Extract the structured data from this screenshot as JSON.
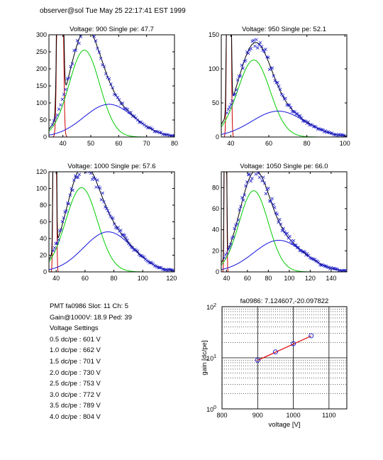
{
  "header": "observer@sol  Tue May 25 22:17:41 EST 1999",
  "info": {
    "pmt_line": "PMT fa0986 Slot: 11 Ch: 5",
    "gain_line": "Gain@1000V: 18.9 Ped: 39",
    "settings_title": "Voltage Settings",
    "settings": [
      "0.5 dc/pe : 601 V",
      "1.0 dc/pe : 662 V",
      "1.5 dc/pe : 701 V",
      "2.0 dc/pe : 730 V",
      "2.5 dc/pe : 753 V",
      "3.0 dc/pe : 772 V",
      "3.5 dc/pe : 789 V",
      "4.0 dc/pe : 804 V"
    ]
  },
  "colors": {
    "data": "#2222cc",
    "total_fit": "#000000",
    "single_pe": "#00cc00",
    "double_pe": "#1111dd",
    "pedestal": "#cc0000",
    "gain_line": "#dd0000",
    "gain_points": "#2222cc"
  },
  "chart_data": [
    {
      "type": "scatter",
      "title": "Voltage: 900 Single pe: 47.7",
      "xlim": [
        35,
        80
      ],
      "ylim": [
        0,
        300
      ],
      "xticks": [
        40,
        50,
        60,
        70,
        80
      ],
      "yticks": [
        0,
        50,
        100,
        150,
        200,
        250,
        300
      ],
      "ped": {
        "mu": 39.0,
        "s": 0.6,
        "a": 3000
      },
      "spe": {
        "mu": 47.7,
        "s": 5.5,
        "a": 255
      },
      "dpe": {
        "mu": 56.5,
        "s": 9.0,
        "a": 96
      },
      "scatter": {
        "x_from": 36.2,
        "x_to": 80,
        "step": 0.6,
        "noise": 0.06
      }
    },
    {
      "type": "scatter",
      "title": "Voltage: 950 Single pe: 52.1",
      "xlim": [
        35,
        101
      ],
      "ylim": [
        0,
        150
      ],
      "xticks": [
        40,
        60,
        80,
        100
      ],
      "yticks": [
        0,
        50,
        100,
        150
      ],
      "ped": {
        "mu": 39.0,
        "s": 0.6,
        "a": 2000
      },
      "spe": {
        "mu": 52.1,
        "s": 8.5,
        "a": 113
      },
      "dpe": {
        "mu": 65.0,
        "s": 14.0,
        "a": 38
      },
      "scatter": {
        "x_from": 38,
        "x_to": 101,
        "step": 0.7,
        "noise": 0.07
      }
    },
    {
      "type": "scatter",
      "title": "Voltage: 1000 Single pe: 57.6",
      "xlim": [
        35,
        122
      ],
      "ylim": [
        0,
        120
      ],
      "xticks": [
        40,
        60,
        80,
        100,
        120
      ],
      "yticks": [
        0,
        20,
        40,
        60,
        80,
        100,
        120
      ],
      "ped": {
        "mu": 39.0,
        "s": 0.6,
        "a": 1600
      },
      "spe": {
        "mu": 57.6,
        "s": 11.0,
        "a": 101
      },
      "dpe": {
        "mu": 76.0,
        "s": 17.0,
        "a": 48
      },
      "scatter": {
        "x_from": 38,
        "x_to": 122,
        "step": 0.9,
        "noise": 0.07
      }
    },
    {
      "type": "scatter",
      "title": "Voltage: 1050 Single pe: 66.0",
      "xlim": [
        35,
        155
      ],
      "ylim": [
        0,
        95
      ],
      "xticks": [
        40,
        60,
        80,
        100,
        120,
        140
      ],
      "yticks": [
        0,
        20,
        40,
        60,
        80
      ],
      "ped": {
        "mu": 39.0,
        "s": 0.6,
        "a": 1400
      },
      "spe": {
        "mu": 66.0,
        "s": 14.0,
        "a": 77
      },
      "dpe": {
        "mu": 90.0,
        "s": 24.0,
        "a": 30
      },
      "scatter": {
        "x_from": 38,
        "x_to": 155,
        "step": 1.2,
        "noise": 0.08
      }
    },
    {
      "type": "line",
      "title": "fa0986: 7.124607,-20.097822",
      "xlabel": "voltage [V]",
      "ylabel": "gain [dc/pe]",
      "xlim": [
        800,
        1150
      ],
      "ylim": [
        1,
        100
      ],
      "yscale": "log",
      "grid": true,
      "xticks": [
        800,
        900,
        1000,
        1100
      ],
      "yticks": [
        {
          "value": 1,
          "label": "10",
          "exp": "0"
        },
        {
          "value": 10,
          "label": "10",
          "exp": "1"
        },
        {
          "value": 100,
          "label": "10",
          "exp": "2"
        }
      ],
      "points": {
        "x": [
          900,
          950,
          1000,
          1050
        ],
        "y": [
          9.0,
          13.0,
          18.9,
          27.0
        ]
      },
      "fit": {
        "slope": 7.124607,
        "intercept": -20.097822,
        "x_from": 900,
        "x_to": 1050
      }
    }
  ]
}
